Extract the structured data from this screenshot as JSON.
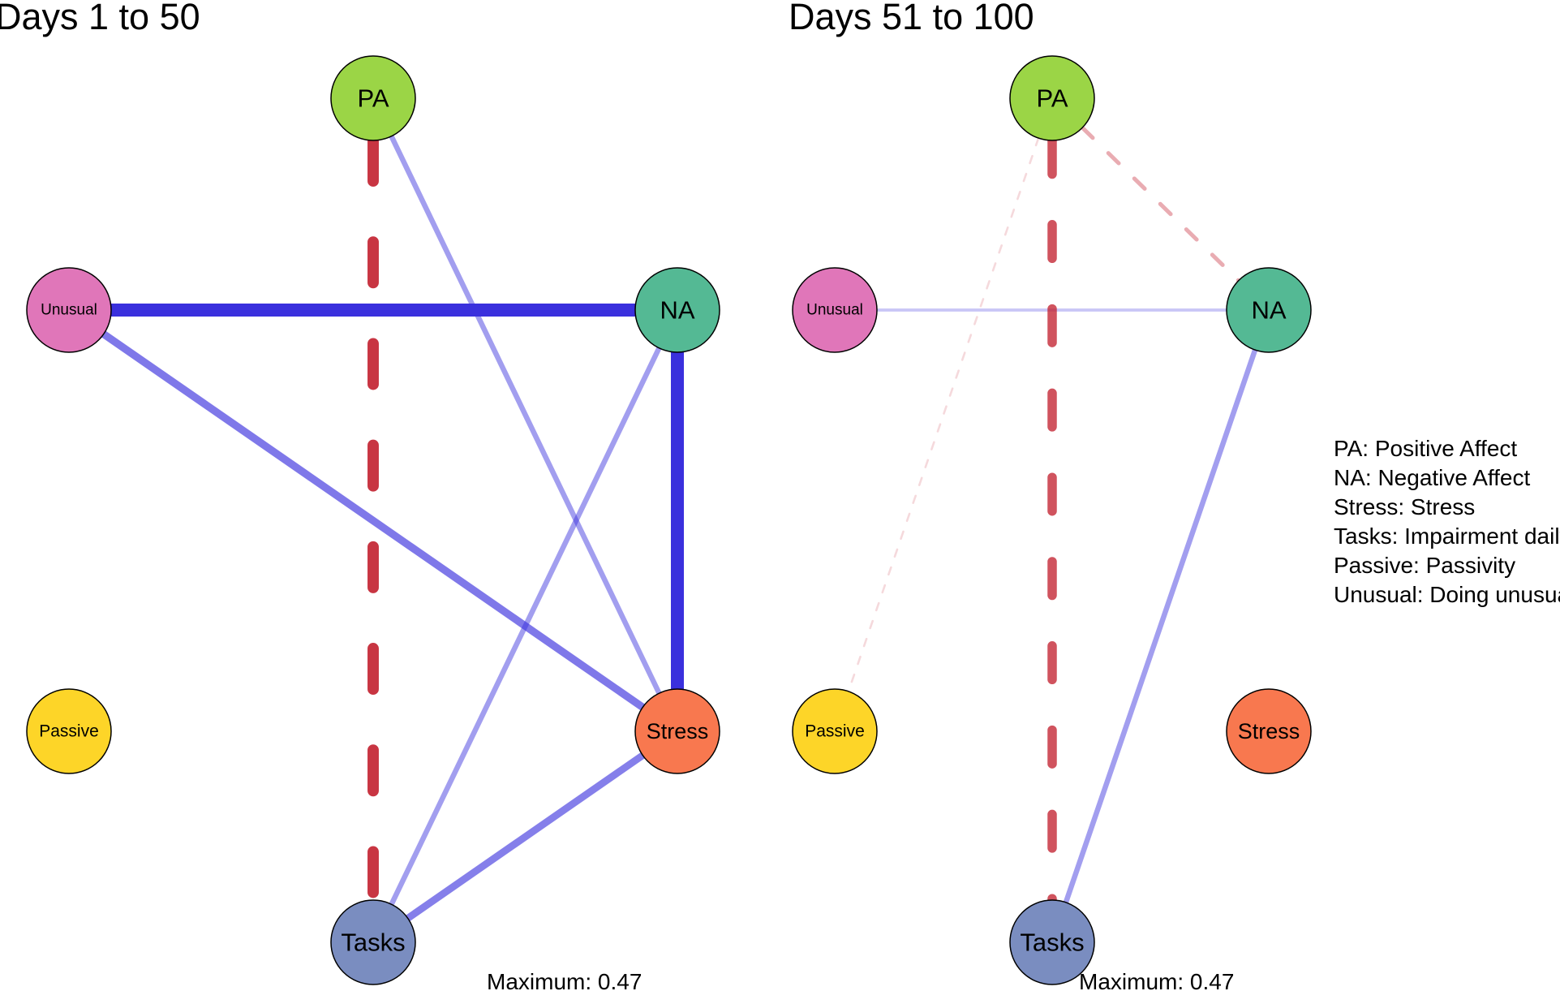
{
  "panels": [
    {
      "id": "days-1-50",
      "title": "Days 1 to 50",
      "max_label": "Maximum: 0.47",
      "nodes": [
        {
          "key": "PA",
          "label": "PA",
          "color": "#9BD546"
        },
        {
          "key": "NA",
          "label": "NA",
          "color": "#54B994"
        },
        {
          "key": "Unusual",
          "label": "Unusual",
          "color": "#E076B9"
        },
        {
          "key": "Passive",
          "label": "Passive",
          "color": "#FDD528"
        },
        {
          "key": "Stress",
          "label": "Stress",
          "color": "#F8784F"
        },
        {
          "key": "Tasks",
          "label": "Tasks",
          "color": "#7A8DC0"
        }
      ],
      "edges": [
        {
          "from": "Unusual",
          "to": "NA",
          "weight": 0.47,
          "sign": "positive"
        },
        {
          "from": "NA",
          "to": "Stress",
          "weight": 0.47,
          "sign": "positive"
        },
        {
          "from": "PA",
          "to": "Tasks",
          "weight": 0.4,
          "sign": "negative"
        },
        {
          "from": "Unusual",
          "to": "Stress",
          "weight": 0.25,
          "sign": "positive"
        },
        {
          "from": "Tasks",
          "to": "Stress",
          "weight": 0.23,
          "sign": "positive"
        },
        {
          "from": "PA",
          "to": "Stress",
          "weight": 0.15,
          "sign": "positive"
        },
        {
          "from": "NA",
          "to": "Tasks",
          "weight": 0.15,
          "sign": "positive"
        }
      ]
    },
    {
      "id": "days-51-100",
      "title": "Days 51 to 100",
      "max_label": "Maximum: 0.47",
      "nodes": [
        {
          "key": "PA",
          "label": "PA",
          "color": "#9BD546"
        },
        {
          "key": "NA",
          "label": "NA",
          "color": "#54B994"
        },
        {
          "key": "Unusual",
          "label": "Unusual",
          "color": "#E076B9"
        },
        {
          "key": "Passive",
          "label": "Passive",
          "color": "#FDD528"
        },
        {
          "key": "Stress",
          "label": "Stress",
          "color": "#F8784F"
        },
        {
          "key": "Tasks",
          "label": "Tasks",
          "color": "#7A8DC0"
        }
      ],
      "edges": [
        {
          "from": "PA",
          "to": "Tasks",
          "weight": 0.32,
          "sign": "negative"
        },
        {
          "from": "NA",
          "to": "Tasks",
          "weight": 0.15,
          "sign": "positive"
        },
        {
          "from": "PA",
          "to": "NA",
          "weight": 0.1,
          "sign": "negative"
        },
        {
          "from": "Unusual",
          "to": "NA",
          "weight": 0.06,
          "sign": "positive"
        },
        {
          "from": "PA",
          "to": "Passive",
          "weight": 0.02,
          "sign": "negative"
        }
      ]
    }
  ],
  "legend": [
    "PA: Positive Affect",
    "NA: Negative Affect",
    "Stress: Stress",
    "Tasks: Impairment daily tasks",
    "Passive: Passivity",
    "Unusual: Doing unusual things"
  ],
  "colors": {
    "positive_edge": "#3A30DD",
    "negative_edge": "#C21F2E",
    "node_border": "#000000",
    "background": "#FFFFFF"
  }
}
